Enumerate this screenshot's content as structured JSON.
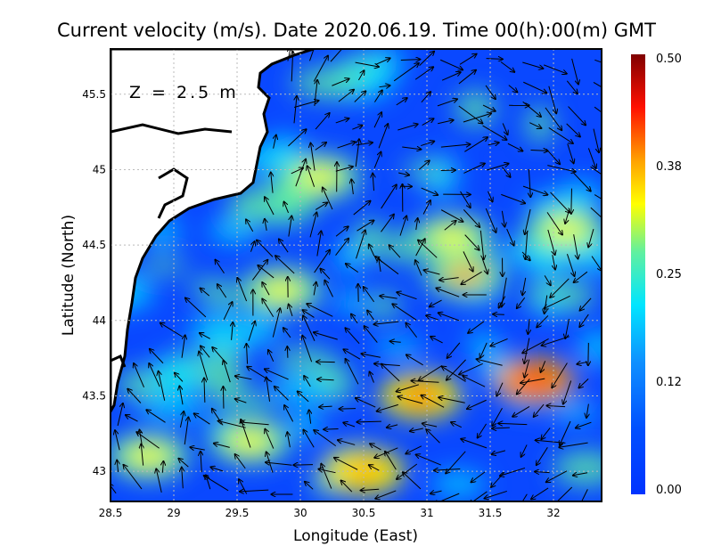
{
  "title": "Current velocity (m/s). Date 2020.06.19. Time 00(h):00(m) GMT",
  "depth_label": "Z = 2.5 m",
  "chart_data": {
    "type": "heatmap",
    "variable": "Current velocity (m/s)",
    "xlabel": "Longitude (East)",
    "ylabel": "Latitude (North)",
    "xlim": [
      28.5,
      32.38
    ],
    "ylim": [
      42.8,
      45.8
    ],
    "xticks": [
      "28.5",
      "29",
      "29.5",
      "30",
      "30.5",
      "31",
      "31.5",
      "32"
    ],
    "yticks": [
      "43",
      "43.5",
      "44",
      "44.5",
      "45",
      "45.5"
    ],
    "colorbar": {
      "ticks": [
        "0.50",
        "0.38",
        "0.25",
        "0.12",
        "0.00"
      ],
      "range": [
        0.0,
        0.5
      ],
      "colors": [
        "#0033ff",
        "#0f7fff",
        "#00e5ff",
        "#60f0a0",
        "#ffff00",
        "#ffa000",
        "#ff2000",
        "#800000"
      ]
    },
    "grid": true,
    "hotspots": [
      {
        "lon": 31.85,
        "lat": 43.6,
        "value": 0.45
      },
      {
        "lon": 30.95,
        "lat": 43.5,
        "value": 0.4
      },
      {
        "lon": 30.5,
        "lat": 43.0,
        "value": 0.35
      },
      {
        "lon": 31.3,
        "lat": 44.3,
        "value": 0.33
      },
      {
        "lon": 31.2,
        "lat": 44.55,
        "value": 0.3
      },
      {
        "lon": 29.85,
        "lat": 44.2,
        "value": 0.28
      },
      {
        "lon": 30.15,
        "lat": 44.95,
        "value": 0.3
      },
      {
        "lon": 32.1,
        "lat": 44.6,
        "value": 0.28
      },
      {
        "lon": 28.8,
        "lat": 43.1,
        "value": 0.26
      },
      {
        "lon": 29.6,
        "lat": 43.2,
        "value": 0.28
      }
    ]
  }
}
